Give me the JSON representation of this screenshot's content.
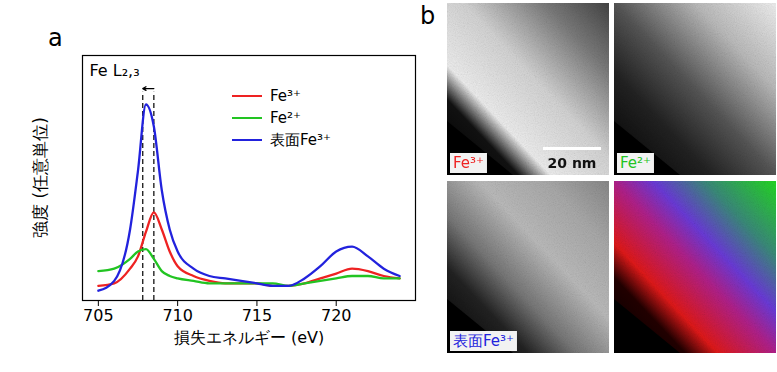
{
  "chart_data": [
    {
      "type": "line",
      "title": "a",
      "x_label": "損失エネルギー (eV)",
      "y_label": "強度 (任意単位)",
      "x": [
        705,
        706,
        707,
        707.5,
        708,
        708.5,
        709,
        709.5,
        710,
        711,
        712,
        713,
        714,
        715,
        716,
        717,
        718,
        719,
        720,
        721,
        722,
        723,
        724
      ],
      "series": [
        {
          "name": "Fe³⁺",
          "color": "#ee2222",
          "values": [
            0.06,
            0.07,
            0.13,
            0.18,
            0.28,
            0.36,
            0.29,
            0.2,
            0.14,
            0.1,
            0.08,
            0.07,
            0.07,
            0.07,
            0.06,
            0.06,
            0.07,
            0.09,
            0.11,
            0.13,
            0.12,
            0.1,
            0.09
          ]
        },
        {
          "name": "Fe²⁺",
          "color": "#22c422",
          "values": [
            0.12,
            0.13,
            0.17,
            0.2,
            0.21,
            0.17,
            0.12,
            0.1,
            0.09,
            0.08,
            0.07,
            0.07,
            0.07,
            0.07,
            0.07,
            0.06,
            0.07,
            0.08,
            0.09,
            0.1,
            0.1,
            0.09,
            0.09
          ]
        },
        {
          "name": "表面Fe³⁺",
          "color": "#2222dd",
          "values": [
            0.04,
            0.08,
            0.29,
            0.53,
            0.8,
            0.71,
            0.45,
            0.29,
            0.2,
            0.13,
            0.1,
            0.09,
            0.08,
            0.07,
            0.06,
            0.06,
            0.09,
            0.14,
            0.2,
            0.22,
            0.18,
            0.13,
            0.1
          ]
        }
      ],
      "xlim": [
        704,
        725
      ],
      "xticks": [
        705,
        710,
        715,
        720
      ],
      "ylim": [
        0,
        1
      ],
      "tick_labels": "x",
      "grid": false,
      "legend": "upper right",
      "annotations": [
        {
          "type": "text",
          "text": "Fe L₂,₃"
        },
        {
          "type": "vline",
          "x": 707.8,
          "line_style": "dashed"
        },
        {
          "type": "vline",
          "x": 708.5,
          "line_style": "dashed"
        },
        {
          "type": "arrow",
          "x1": 708.5,
          "x2": 707.8
        }
      ]
    },
    {
      "type": "image",
      "title": "b",
      "panels": [
        {
          "name": "Fe³⁺",
          "color": "#ee2222"
        },
        {
          "name": "Fe²⁺",
          "color": "#22c422"
        },
        {
          "name": "表面Fe³⁺",
          "color": "#2222dd"
        }
      ],
      "scale_bar_label": "20 nm"
    }
  ]
}
